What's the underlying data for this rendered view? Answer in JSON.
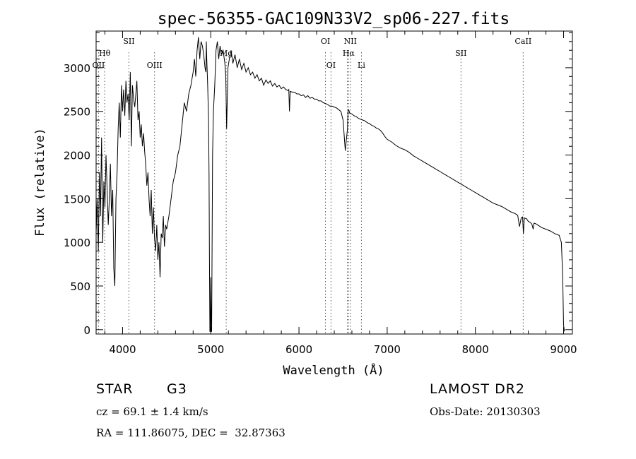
{
  "chart_data": {
    "type": "line",
    "title": "spec-56355-GAC109N33V2_sp06-227.fits",
    "xlabel": "Wavelength (Å)",
    "ylabel": "Flux (relative)",
    "xlim": [
      3700,
      9100
    ],
    "ylim": [
      -50,
      3420
    ],
    "xticks": [
      "4000",
      "5000",
      "6000",
      "7000",
      "8000",
      "9000"
    ],
    "yticks": [
      "0",
      "500",
      "1000",
      "1500",
      "2000",
      "2500",
      "3000"
    ],
    "grid": false,
    "series": [
      {
        "x": [
          3700,
          3712,
          3725,
          3738,
          3750,
          3762,
          3775,
          3788,
          3800,
          3812,
          3825,
          3838,
          3850,
          3862,
          3875,
          3888,
          3900,
          3912,
          3925,
          3938,
          3950,
          3962,
          3975,
          3988,
          4000,
          4012,
          4025,
          4038,
          4050,
          4062,
          4075,
          4088,
          4100,
          4112,
          4125,
          4138,
          4150,
          4162,
          4175,
          4188,
          4200,
          4212,
          4225,
          4238,
          4250,
          4262,
          4275,
          4288,
          4300,
          4312,
          4325,
          4338,
          4350,
          4362,
          4375,
          4388,
          4400,
          4412,
          4425,
          4438,
          4450,
          4462,
          4475,
          4488,
          4500,
          4525,
          4550,
          4575,
          4600,
          4625,
          4650,
          4675,
          4700,
          4725,
          4750,
          4775,
          4800,
          4815,
          4830,
          4845,
          4860,
          4875,
          4890,
          4905,
          4920,
          4935,
          4945,
          4950,
          4955,
          4965,
          4975,
          4980,
          4985,
          4990,
          4995,
          5000,
          5005,
          5010,
          5020,
          5030,
          5045,
          5060,
          5075,
          5090,
          5105,
          5120,
          5140,
          5160,
          5170,
          5180,
          5195,
          5210,
          5230,
          5250,
          5275,
          5300,
          5325,
          5350,
          5375,
          5400,
          5425,
          5450,
          5475,
          5500,
          5525,
          5550,
          5575,
          5600,
          5625,
          5650,
          5675,
          5700,
          5725,
          5750,
          5775,
          5800,
          5825,
          5850,
          5875,
          5885,
          5892,
          5900,
          5925,
          5950,
          5975,
          6000,
          6025,
          6050,
          6075,
          6100,
          6125,
          6150,
          6175,
          6200,
          6225,
          6250,
          6275,
          6300,
          6325,
          6350,
          6375,
          6400,
          6425,
          6450,
          6475,
          6500,
          6525,
          6550,
          6556,
          6563,
          6570,
          6575,
          6600,
          6625,
          6650,
          6675,
          6700,
          6725,
          6750,
          6775,
          6800,
          6825,
          6850,
          6875,
          6900,
          6925,
          6950,
          6975,
          7000,
          7050,
          7100,
          7150,
          7200,
          7250,
          7300,
          7350,
          7400,
          7450,
          7500,
          7550,
          7600,
          7650,
          7700,
          7750,
          7800,
          7850,
          7900,
          7950,
          8000,
          8050,
          8100,
          8150,
          8200,
          8250,
          8300,
          8350,
          8400,
          8450,
          8480,
          8500,
          8520,
          8535,
          8545,
          8555,
          8580,
          8600,
          8620,
          8640,
          8655,
          8665,
          8690,
          8720,
          8750,
          8800,
          8850,
          8900,
          8950,
          8975,
          8990,
          9000,
          9010
        ],
        "y": [
          1100,
          1500,
          900,
          1800,
          1300,
          2200,
          1000,
          1700,
          1400,
          2000,
          1600,
          1200,
          1500,
          1900,
          1300,
          1600,
          700,
          500,
          1500,
          1800,
          2300,
          2600,
          2200,
          2800,
          2500,
          2750,
          2450,
          2850,
          2600,
          2700,
          2400,
          2950,
          2100,
          2800,
          2650,
          2550,
          2700,
          2850,
          2400,
          2500,
          2200,
          2350,
          2100,
          2250,
          2050,
          1900,
          1650,
          1800,
          1500,
          1300,
          1600,
          1100,
          1400,
          1050,
          900,
          1200,
          800,
          1000,
          600,
          1100,
          1050,
          1300,
          950,
          1200,
          1150,
          1300,
          1500,
          1700,
          1800,
          2000,
          2100,
          2350,
          2600,
          2500,
          2700,
          2800,
          2950,
          3100,
          2900,
          3200,
          3350,
          3100,
          3300,
          3250,
          3150,
          3000,
          2950,
          3300,
          3100,
          2800,
          2400,
          1800,
          800,
          -20,
          -20,
          600,
          -20,
          -20,
          2000,
          2500,
          2800,
          3200,
          3300,
          3100,
          3250,
          3150,
          3200,
          3050,
          2900,
          2300,
          3000,
          3100,
          3200,
          3050,
          3150,
          3000,
          3100,
          2980,
          3050,
          2950,
          3000,
          2920,
          2950,
          2880,
          2920,
          2850,
          2880,
          2800,
          2860,
          2820,
          2850,
          2790,
          2820,
          2780,
          2800,
          2760,
          2780,
          2750,
          2740,
          2750,
          2500,
          2730,
          2720,
          2720,
          2700,
          2700,
          2680,
          2690,
          2660,
          2680,
          2650,
          2660,
          2640,
          2640,
          2620,
          2620,
          2600,
          2590,
          2580,
          2560,
          2560,
          2550,
          2540,
          2520,
          2500,
          2400,
          2050,
          2300,
          2500,
          2520,
          2500,
          2480,
          2470,
          2450,
          2440,
          2420,
          2410,
          2400,
          2390,
          2370,
          2360,
          2340,
          2330,
          2310,
          2300,
          2280,
          2250,
          2210,
          2180,
          2150,
          2110,
          2080,
          2060,
          2030,
          1990,
          1960,
          1930,
          1900,
          1870,
          1840,
          1810,
          1780,
          1750,
          1720,
          1690,
          1660,
          1630,
          1600,
          1570,
          1540,
          1510,
          1480,
          1450,
          1430,
          1410,
          1380,
          1350,
          1330,
          1310,
          1180,
          1280,
          1290,
          1100,
          1280,
          1270,
          1240,
          1230,
          1210,
          1150,
          1220,
          1210,
          1190,
          1170,
          1150,
          1130,
          1100,
          1080,
          1000,
          600,
          50,
          -20
        ]
      }
    ],
    "annotations": [
      {
        "text": "OII",
        "x": 3727,
        "row": 3
      },
      {
        "text": "Hθ",
        "x": 3797,
        "row": 2
      },
      {
        "text": "SII",
        "x": 4072,
        "row": 1
      },
      {
        "text": "OIII",
        "x": 4363,
        "row": 3
      },
      {
        "text": "Mg",
        "x": 5175,
        "row": 2
      },
      {
        "text": "OI",
        "x": 6300,
        "row": 1
      },
      {
        "text": "OI",
        "x": 6363,
        "row": 3
      },
      {
        "text": "NII",
        "x": 6583,
        "row": 1
      },
      {
        "text": "Hα",
        "x": 6563,
        "row": 2
      },
      {
        "text": "Li",
        "x": 6708,
        "row": 3
      },
      {
        "text": "SII",
        "x": 7837,
        "row": 2
      },
      {
        "text": "CaII",
        "x": 8542,
        "row": 1
      }
    ],
    "line_markers": [
      3727,
      3797,
      4072,
      4363,
      5175,
      6300,
      6363,
      6548,
      6563,
      6583,
      6708,
      7837,
      8542
    ]
  },
  "info": {
    "object_class": "STAR",
    "subclass": "G3",
    "survey": "LAMOST DR2",
    "redshift": "cz = 69.1 ± 1.4 km/s",
    "obs_date": "Obs-Date: 20130303",
    "coords": "RA = 111.86075, DEC =  32.87363"
  }
}
